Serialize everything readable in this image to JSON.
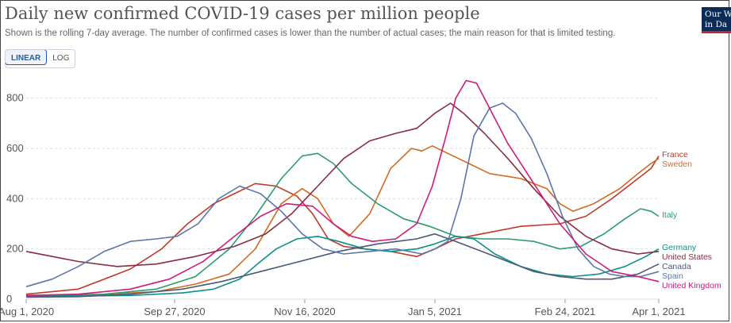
{
  "header": {
    "title": "Daily new confirmed COVID-19 cases per million people",
    "subtitle": "Shown is the rolling 7-day average. The number of confirmed cases is lower than the number of actual cases; the main reason for that is limited testing.",
    "logo_line1": "Our W",
    "logo_line2": "in Da"
  },
  "scale_toggle": {
    "linear_label": "LINEAR",
    "log_label": "LOG",
    "selected": "LINEAR"
  },
  "chart_data": {
    "type": "line",
    "title": "Daily new confirmed COVID-19 cases per million people",
    "x_start": "2020-08-01",
    "x_end": "2021-04-01",
    "xlim_days": [
      0,
      243
    ],
    "ylim": [
      0,
      900
    ],
    "y_ticks": [
      0,
      200,
      400,
      600,
      800
    ],
    "x_tick_labels": [
      {
        "day": 0,
        "label": "Aug 1, 2020"
      },
      {
        "day": 57,
        "label": "Sep 27, 2020"
      },
      {
        "day": 107,
        "label": "Nov 16, 2020"
      },
      {
        "day": 157,
        "label": "Jan 5, 2021"
      },
      {
        "day": 207,
        "label": "Feb 24, 2021"
      },
      {
        "day": 243,
        "label": "Apr 1, 2021"
      }
    ],
    "grid": true,
    "legend": "right",
    "series": [
      {
        "name": "France",
        "color": "#c0392b",
        "points": [
          [
            0,
            20
          ],
          [
            20,
            40
          ],
          [
            40,
            120
          ],
          [
            52,
            200
          ],
          [
            62,
            300
          ],
          [
            72,
            380
          ],
          [
            80,
            420
          ],
          [
            88,
            460
          ],
          [
            96,
            450
          ],
          [
            104,
            410
          ],
          [
            110,
            340
          ],
          [
            116,
            240
          ],
          [
            122,
            210
          ],
          [
            130,
            200
          ],
          [
            140,
            190
          ],
          [
            150,
            170
          ],
          [
            157,
            200
          ],
          [
            165,
            240
          ],
          [
            175,
            260
          ],
          [
            190,
            290
          ],
          [
            205,
            300
          ],
          [
            215,
            330
          ],
          [
            225,
            400
          ],
          [
            235,
            480
          ],
          [
            240,
            520
          ],
          [
            243,
            570
          ]
        ]
      },
      {
        "name": "Sweden",
        "color": "#d46a1f",
        "points": [
          [
            0,
            15
          ],
          [
            30,
            20
          ],
          [
            50,
            30
          ],
          [
            65,
            60
          ],
          [
            78,
            100
          ],
          [
            88,
            200
          ],
          [
            98,
            380
          ],
          [
            106,
            440
          ],
          [
            112,
            400
          ],
          [
            118,
            300
          ],
          [
            124,
            250
          ],
          [
            132,
            340
          ],
          [
            140,
            520
          ],
          [
            148,
            600
          ],
          [
            152,
            590
          ],
          [
            156,
            610
          ],
          [
            160,
            590
          ],
          [
            166,
            560
          ],
          [
            170,
            540
          ],
          [
            178,
            500
          ],
          [
            190,
            480
          ],
          [
            200,
            440
          ],
          [
            205,
            380
          ],
          [
            210,
            350
          ],
          [
            218,
            380
          ],
          [
            228,
            440
          ],
          [
            235,
            500
          ],
          [
            240,
            540
          ],
          [
            243,
            560
          ]
        ]
      },
      {
        "name": "Italy",
        "color": "#2a9d6f",
        "points": [
          [
            0,
            10
          ],
          [
            30,
            20
          ],
          [
            50,
            40
          ],
          [
            65,
            90
          ],
          [
            78,
            200
          ],
          [
            88,
            330
          ],
          [
            98,
            480
          ],
          [
            106,
            570
          ],
          [
            112,
            580
          ],
          [
            118,
            540
          ],
          [
            125,
            460
          ],
          [
            135,
            380
          ],
          [
            145,
            320
          ],
          [
            155,
            290
          ],
          [
            165,
            250
          ],
          [
            175,
            240
          ],
          [
            185,
            240
          ],
          [
            195,
            230
          ],
          [
            205,
            200
          ],
          [
            213,
            210
          ],
          [
            222,
            260
          ],
          [
            230,
            320
          ],
          [
            236,
            360
          ],
          [
            240,
            350
          ],
          [
            243,
            330
          ]
        ]
      },
      {
        "name": "Germany",
        "color": "#0d8f8a",
        "points": [
          [
            0,
            10
          ],
          [
            40,
            15
          ],
          [
            60,
            25
          ],
          [
            72,
            40
          ],
          [
            82,
            80
          ],
          [
            90,
            150
          ],
          [
            96,
            200
          ],
          [
            104,
            240
          ],
          [
            112,
            250
          ],
          [
            120,
            230
          ],
          [
            130,
            200
          ],
          [
            140,
            190
          ],
          [
            150,
            200
          ],
          [
            157,
            220
          ],
          [
            165,
            250
          ],
          [
            172,
            240
          ],
          [
            180,
            180
          ],
          [
            190,
            130
          ],
          [
            200,
            100
          ],
          [
            210,
            90
          ],
          [
            220,
            100
          ],
          [
            230,
            130
          ],
          [
            238,
            170
          ],
          [
            243,
            200
          ]
        ]
      },
      {
        "name": "United States",
        "color": "#8a2c43",
        "points": [
          [
            0,
            190
          ],
          [
            10,
            170
          ],
          [
            20,
            150
          ],
          [
            35,
            130
          ],
          [
            50,
            140
          ],
          [
            65,
            170
          ],
          [
            80,
            210
          ],
          [
            92,
            260
          ],
          [
            102,
            340
          ],
          [
            112,
            450
          ],
          [
            122,
            560
          ],
          [
            132,
            630
          ],
          [
            142,
            660
          ],
          [
            150,
            680
          ],
          [
            157,
            740
          ],
          [
            163,
            780
          ],
          [
            168,
            740
          ],
          [
            176,
            660
          ],
          [
            185,
            560
          ],
          [
            195,
            440
          ],
          [
            205,
            330
          ],
          [
            215,
            250
          ],
          [
            225,
            200
          ],
          [
            235,
            180
          ],
          [
            243,
            190
          ]
        ]
      },
      {
        "name": "Canada",
        "color": "#4a5a7a",
        "points": [
          [
            0,
            8
          ],
          [
            20,
            10
          ],
          [
            40,
            20
          ],
          [
            60,
            40
          ],
          [
            75,
            70
          ],
          [
            90,
            110
          ],
          [
            105,
            150
          ],
          [
            120,
            190
          ],
          [
            135,
            220
          ],
          [
            150,
            240
          ],
          [
            157,
            260
          ],
          [
            165,
            230
          ],
          [
            175,
            190
          ],
          [
            185,
            150
          ],
          [
            195,
            110
          ],
          [
            205,
            90
          ],
          [
            215,
            80
          ],
          [
            225,
            80
          ],
          [
            235,
            100
          ],
          [
            243,
            140
          ]
        ]
      },
      {
        "name": "Spain",
        "color": "#5b77a8",
        "points": [
          [
            0,
            50
          ],
          [
            10,
            80
          ],
          [
            20,
            130
          ],
          [
            30,
            190
          ],
          [
            40,
            230
          ],
          [
            50,
            240
          ],
          [
            58,
            250
          ],
          [
            66,
            300
          ],
          [
            74,
            400
          ],
          [
            82,
            450
          ],
          [
            90,
            420
          ],
          [
            98,
            350
          ],
          [
            106,
            260
          ],
          [
            114,
            200
          ],
          [
            122,
            180
          ],
          [
            132,
            190
          ],
          [
            142,
            200
          ],
          [
            152,
            180
          ],
          [
            157,
            200
          ],
          [
            162,
            230
          ],
          [
            167,
            400
          ],
          [
            172,
            650
          ],
          [
            178,
            760
          ],
          [
            183,
            780
          ],
          [
            188,
            740
          ],
          [
            194,
            640
          ],
          [
            200,
            500
          ],
          [
            206,
            330
          ],
          [
            212,
            200
          ],
          [
            218,
            130
          ],
          [
            224,
            100
          ],
          [
            230,
            90
          ],
          [
            236,
            90
          ],
          [
            243,
            110
          ]
        ]
      },
      {
        "name": "United Kingdom",
        "color": "#d01a7d",
        "points": [
          [
            0,
            15
          ],
          [
            20,
            20
          ],
          [
            40,
            40
          ],
          [
            55,
            80
          ],
          [
            68,
            150
          ],
          [
            80,
            250
          ],
          [
            90,
            330
          ],
          [
            100,
            380
          ],
          [
            110,
            370
          ],
          [
            118,
            300
          ],
          [
            125,
            250
          ],
          [
            133,
            230
          ],
          [
            142,
            240
          ],
          [
            150,
            300
          ],
          [
            156,
            450
          ],
          [
            161,
            640
          ],
          [
            165,
            800
          ],
          [
            169,
            870
          ],
          [
            173,
            860
          ],
          [
            178,
            760
          ],
          [
            185,
            620
          ],
          [
            195,
            460
          ],
          [
            205,
            300
          ],
          [
            215,
            180
          ],
          [
            225,
            110
          ],
          [
            235,
            90
          ],
          [
            243,
            70
          ]
        ]
      }
    ]
  },
  "labels": [
    {
      "text": "France",
      "series": "France",
      "color": "#c0392b"
    },
    {
      "text": "Sweden",
      "series": "Sweden",
      "color": "#d46a1f"
    },
    {
      "text": "Italy",
      "series": "Italy",
      "color": "#2a9d6f"
    },
    {
      "text": "Germany",
      "series": "Germany",
      "color": "#0d8f8a"
    },
    {
      "text": "United States",
      "series": "United States",
      "color": "#8a2c43"
    },
    {
      "text": "Canada",
      "series": "Canada",
      "color": "#4a5a7a"
    },
    {
      "text": "Spain",
      "series": "Spain",
      "color": "#5b77a8"
    },
    {
      "text": "United Kingdom",
      "series": "United Kingdom",
      "color": "#d01a7d"
    }
  ]
}
